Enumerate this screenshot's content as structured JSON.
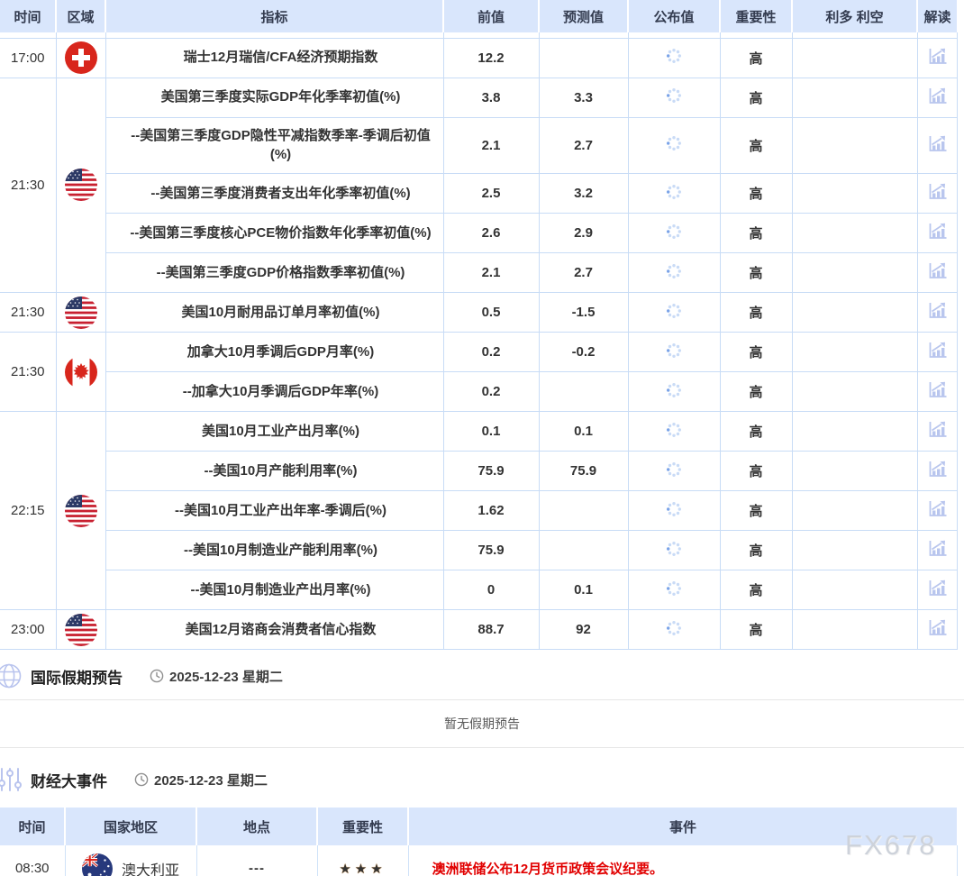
{
  "main_table": {
    "columns": [
      "时间",
      "区域",
      "指标",
      "前值",
      "预测值",
      "公布值",
      "重要性",
      "利多 利空",
      "解读"
    ],
    "groups": [
      {
        "time": "17:00",
        "flag": "switzerland",
        "rows": [
          {
            "indicator": "瑞士12月瑞信/CFA经济预期指数",
            "prev": "12.2",
            "forecast": "",
            "published": "",
            "importance": "高",
            "bias": ""
          }
        ]
      },
      {
        "time": "21:30",
        "flag": "usa",
        "rows": [
          {
            "indicator": "美国第三季度实际GDP年化季率初值(%)",
            "prev": "3.8",
            "forecast": "3.3",
            "published": "",
            "importance": "高",
            "bias": ""
          },
          {
            "indicator": "--美国第三季度GDP隐性平减指数季率-季调后初值(%)",
            "prev": "2.1",
            "forecast": "2.7",
            "published": "",
            "importance": "高",
            "bias": ""
          },
          {
            "indicator": "--美国第三季度消费者支出年化季率初值(%)",
            "prev": "2.5",
            "forecast": "3.2",
            "published": "",
            "importance": "高",
            "bias": ""
          },
          {
            "indicator": "--美国第三季度核心PCE物价指数年化季率初值(%)",
            "prev": "2.6",
            "forecast": "2.9",
            "published": "",
            "importance": "高",
            "bias": ""
          },
          {
            "indicator": "--美国第三季度GDP价格指数季率初值(%)",
            "prev": "2.1",
            "forecast": "2.7",
            "published": "",
            "importance": "高",
            "bias": ""
          }
        ]
      },
      {
        "time": "21:30",
        "flag": "usa",
        "rows": [
          {
            "indicator": "美国10月耐用品订单月率初值(%)",
            "prev": "0.5",
            "forecast": "-1.5",
            "published": "",
            "importance": "高",
            "bias": ""
          }
        ]
      },
      {
        "time": "21:30",
        "flag": "canada",
        "rows": [
          {
            "indicator": "加拿大10月季调后GDP月率(%)",
            "prev": "0.2",
            "forecast": "-0.2",
            "published": "",
            "importance": "高",
            "bias": ""
          },
          {
            "indicator": "--加拿大10月季调后GDP年率(%)",
            "prev": "0.2",
            "forecast": "",
            "published": "",
            "importance": "高",
            "bias": ""
          }
        ]
      },
      {
        "time": "22:15",
        "flag": "usa",
        "rows": [
          {
            "indicator": "美国10月工业产出月率(%)",
            "prev": "0.1",
            "forecast": "0.1",
            "published": "",
            "importance": "高",
            "bias": ""
          },
          {
            "indicator": "--美国10月产能利用率(%)",
            "prev": "75.9",
            "forecast": "75.9",
            "published": "",
            "importance": "高",
            "bias": ""
          },
          {
            "indicator": "--美国10月工业产出年率-季调后(%)",
            "prev": "1.62",
            "forecast": "",
            "published": "",
            "importance": "高",
            "bias": ""
          },
          {
            "indicator": "--美国10月制造业产能利用率(%)",
            "prev": "75.9",
            "forecast": "",
            "published": "",
            "importance": "高",
            "bias": ""
          },
          {
            "indicator": "--美国10月制造业产出月率(%)",
            "prev": "0",
            "forecast": "0.1",
            "published": "",
            "importance": "高",
            "bias": ""
          }
        ]
      },
      {
        "time": "23:00",
        "flag": "usa",
        "rows": [
          {
            "indicator": "美国12月谘商会消费者信心指数",
            "prev": "88.7",
            "forecast": "92",
            "published": "",
            "importance": "高",
            "bias": ""
          }
        ]
      }
    ]
  },
  "holiday_section": {
    "title": "国际假期预告",
    "date": "2025-12-23 星期二",
    "empty_message": "暂无假期预告"
  },
  "events_section": {
    "title": "财经大事件",
    "date": "2025-12-23 星期二",
    "columns": [
      "时间",
      "国家地区",
      "地点",
      "重要性",
      "事件"
    ],
    "rows": [
      {
        "time": "08:30",
        "flag": "australia",
        "country": "澳大利亚",
        "location": "---",
        "stars": 3,
        "event": "澳洲联储公布12月货币政策会议纪要。"
      }
    ]
  },
  "watermark": "FX678",
  "icons": {
    "published_pending": "loading-spinner-icon",
    "interpret": "trend-chart-icon",
    "holiday": "globe-icon",
    "events": "analytics-icon",
    "date": "clock-icon",
    "importance": "star-icon"
  },
  "colors": {
    "accent_red": "#e10000",
    "header_bg": "#d9e6fc",
    "table_border": "#c8dcf6",
    "icon_blue": "#b9c6ee",
    "star_orange": "#ff9d00",
    "watermark_gray": "#cdd2da"
  }
}
